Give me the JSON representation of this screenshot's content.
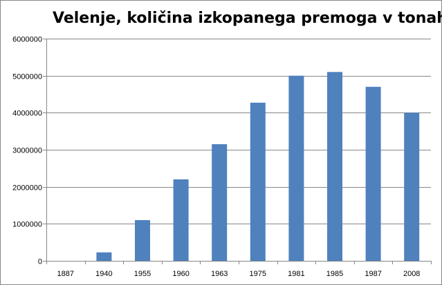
{
  "chart_data": {
    "type": "bar",
    "title": "Velenje, količina izkopanega premoga v tonah",
    "categories": [
      "1887",
      "1940",
      "1955",
      "1960",
      "1963",
      "1975",
      "1981",
      "1985",
      "1987",
      "2008"
    ],
    "values": [
      0,
      230000,
      1100000,
      2200000,
      3150000,
      4270000,
      5000000,
      5100000,
      4700000,
      4000000
    ],
    "ylim": [
      0,
      6000000
    ],
    "yticks": [
      "0",
      "1000000",
      "2000000",
      "3000000",
      "4000000",
      "5000000",
      "6000000"
    ],
    "xlabel": "",
    "ylabel": "",
    "grid": true,
    "legend": "none",
    "colors": {
      "bar": "#4F81BD",
      "grid": "#868686",
      "axis": "#868686"
    }
  }
}
